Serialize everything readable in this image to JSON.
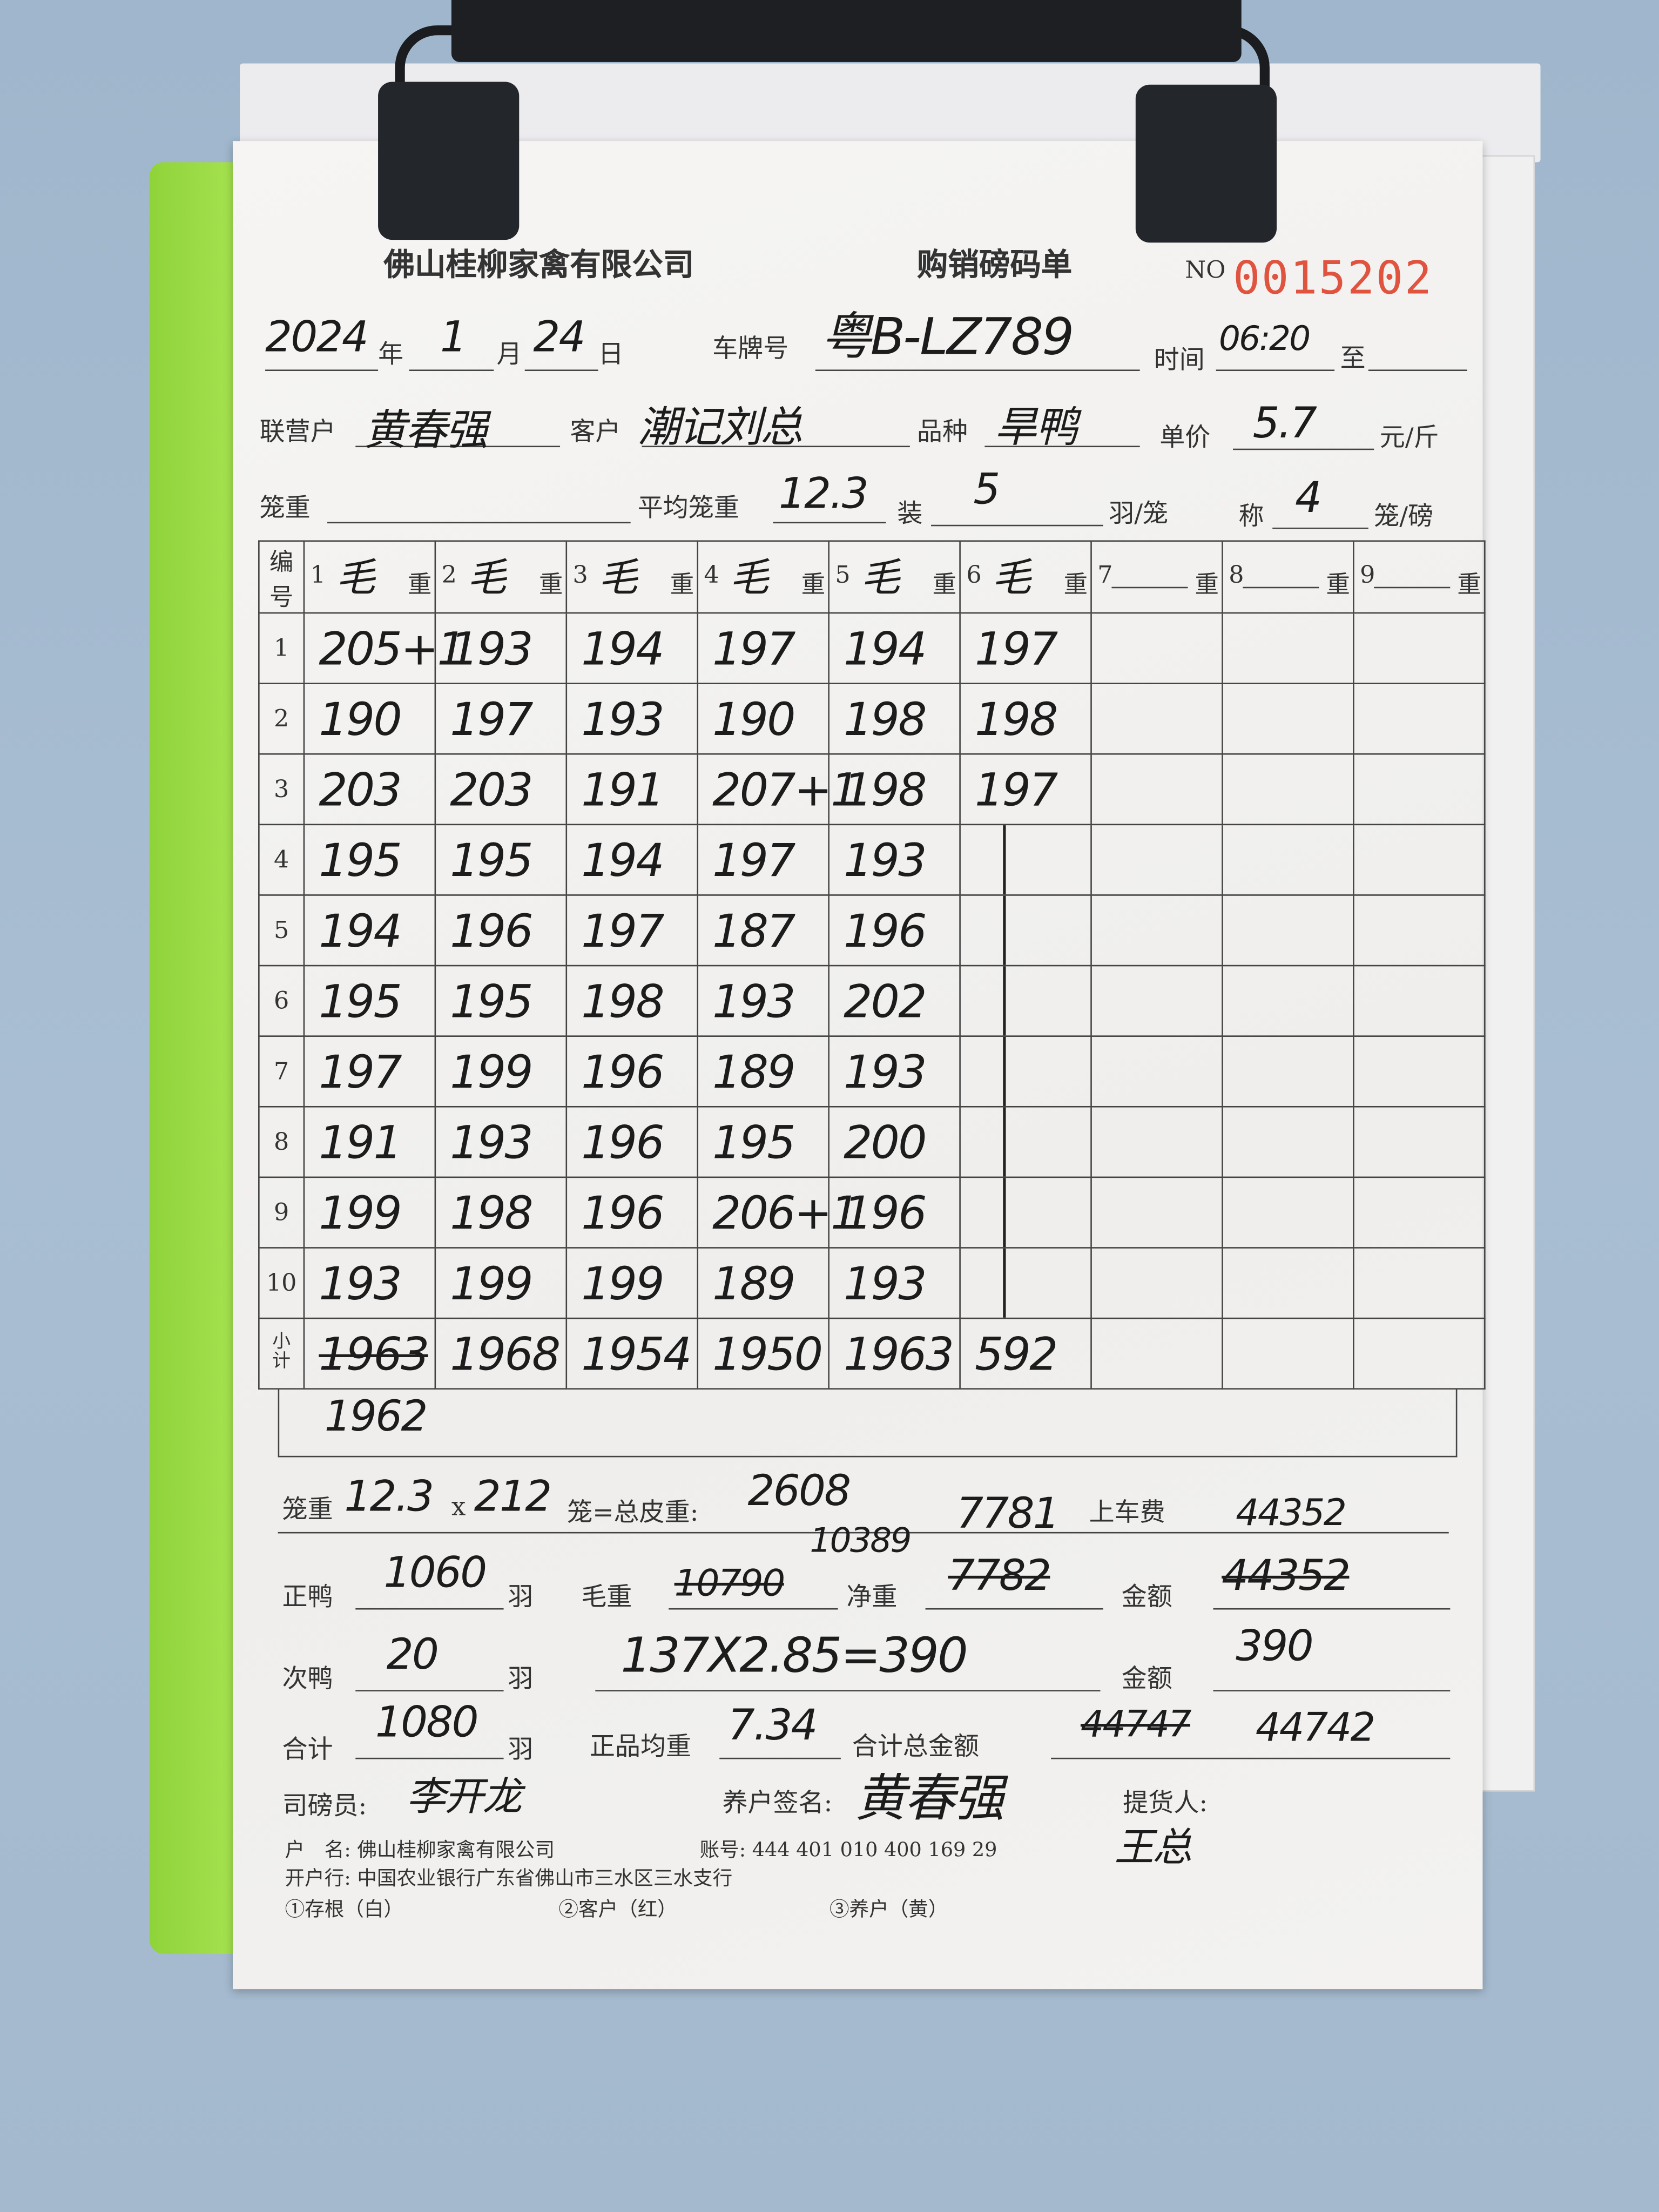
{
  "header": {
    "company": "佛山桂柳家禽有限公司",
    "form_title": "购销磅码单",
    "no_label": "NO",
    "serial": "0015202",
    "serial_color": "#e0533f"
  },
  "info": {
    "year": "2024",
    "year_label": "年",
    "month": "1",
    "month_label": "月",
    "day": "24",
    "day_label": "日",
    "plate_label": "车牌号",
    "plate": "粤B-LZ789",
    "time_label": "时间",
    "time": "06:20",
    "to_label": "至",
    "partner_label": "联营户",
    "partner": "黄春强",
    "customer_label": "客户",
    "customer": "潮记刘总",
    "breed_label": "品种",
    "breed": "旱鸭",
    "price_label": "单价",
    "price": "5.7",
    "price_unit": "元/斤",
    "cage_weight_label": "笼重",
    "avg_cage_label": "平均笼重",
    "avg_cage": "12.3",
    "pack_label": "装",
    "pack": "5",
    "pack_unit": "羽/笼",
    "weigh_label": "称",
    "weigh": "4",
    "weigh_unit": "笼/磅"
  },
  "table": {
    "no_header": "编号",
    "weight_label": "重",
    "gross_mark": "毛",
    "columns": [
      "1",
      "2",
      "3",
      "4",
      "5",
      "6",
      "7",
      "8",
      "9"
    ],
    "rows": [
      [
        "1",
        [
          "205+1",
          "193",
          "194",
          "197",
          "194",
          "197"
        ]
      ],
      [
        "2",
        [
          "190",
          "197",
          "193",
          "190",
          "198",
          "198"
        ]
      ],
      [
        "3",
        [
          "203",
          "203",
          "191",
          "207+1",
          "198",
          "197"
        ]
      ],
      [
        "4",
        [
          "195",
          "195",
          "194",
          "197",
          "193",
          ""
        ]
      ],
      [
        "5",
        [
          "194",
          "196",
          "197",
          "187",
          "196",
          ""
        ]
      ],
      [
        "6",
        [
          "195",
          "195",
          "198",
          "193",
          "202",
          ""
        ]
      ],
      [
        "7",
        [
          "197",
          "199",
          "196",
          "189",
          "193",
          ""
        ]
      ],
      [
        "8",
        [
          "191",
          "193",
          "196",
          "195",
          "200",
          ""
        ]
      ],
      [
        "9",
        [
          "199",
          "198",
          "196",
          "206+1",
          "196",
          ""
        ]
      ],
      [
        "10",
        [
          "193",
          "199",
          "199",
          "189",
          "193",
          ""
        ]
      ]
    ],
    "subtotal_label": "小计",
    "subtotals": [
      "1963",
      "1968",
      "1954",
      "1950",
      "1963",
      "592"
    ],
    "subtotal_correction": "1962"
  },
  "summary": {
    "cage_label": "笼重",
    "cage_avg": "12.3",
    "times": "x",
    "cage_count": "212",
    "tare_label": "笼=总皮重:",
    "tare": "2608",
    "net_note": "7781",
    "loading_fee_label": "上车费",
    "loading_fee": "44352",
    "good_label": "正鸭",
    "good_count": "1060",
    "unit": "羽",
    "gross_label": "毛重",
    "gross_old": "10790",
    "gross": "10389",
    "net_label": "净重",
    "net_old": "7782",
    "amount_label": "金额",
    "amount_old": "44352",
    "second_label": "次鸭",
    "second_count": "20",
    "second_calc": "137X2.85=390",
    "second_amount": "390",
    "total_label": "合计",
    "total_count": "1080",
    "avg_label": "正品均重",
    "avg": "7.34",
    "grand_label": "合计总金额",
    "grand_old": "44747",
    "grand": "44742"
  },
  "signatures": {
    "weigher_label": "司磅员:",
    "weigher": "李开龙",
    "farmer_label": "养户签名:",
    "farmer": "黄春强",
    "pickup_label": "提货人:",
    "pickup": "王总"
  },
  "footer": {
    "account_name": "户　名: 佛山桂柳家禽有限公司",
    "account_no": "账号: 444 401 010 400 169 29",
    "bank": "开户行: 中国农业银行广东省佛山市三水区三水支行",
    "copy1": "①存根（白）",
    "copy2": "②客户（红）",
    "copy3": "③养户（黄）"
  }
}
